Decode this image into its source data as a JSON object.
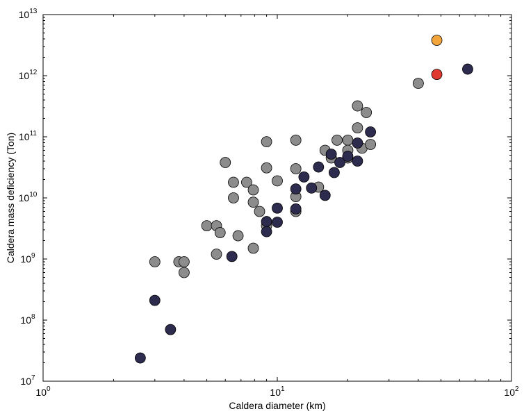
{
  "chart_data": {
    "type": "scatter",
    "title": "",
    "xlabel": "Caldera diameter (km)",
    "ylabel": "Caldera mass deficiency (Ton)",
    "x_scale": "log",
    "y_scale": "log",
    "xlim": [
      1,
      100
    ],
    "ylim": [
      10000000,
      10000000000000
    ],
    "x_ticks": [
      {
        "value": 1,
        "base": "10",
        "exp": "0"
      },
      {
        "value": 10,
        "base": "10",
        "exp": "1"
      },
      {
        "value": 100,
        "base": "10",
        "exp": "2"
      }
    ],
    "y_ticks": [
      {
        "value": 10000000,
        "base": "10",
        "exp": "7"
      },
      {
        "value": 100000000,
        "base": "10",
        "exp": "8"
      },
      {
        "value": 1000000000,
        "base": "10",
        "exp": "9"
      },
      {
        "value": 10000000000,
        "base": "10",
        "exp": "10"
      },
      {
        "value": 100000000000,
        "base": "10",
        "exp": "11"
      },
      {
        "value": 1000000000000,
        "base": "10",
        "exp": "12"
      },
      {
        "value": 10000000000000,
        "base": "10",
        "exp": "13"
      }
    ],
    "grid": false,
    "series": [
      {
        "color": "#8c8c8c",
        "points": [
          [
            3.0,
            900000000.0
          ],
          [
            3.8,
            900000000.0
          ],
          [
            4.0,
            900000000.0
          ],
          [
            4.0,
            600000000.0
          ],
          [
            5.0,
            3500000000.0
          ],
          [
            5.5,
            3500000000.0
          ],
          [
            5.5,
            1200000000.0
          ],
          [
            5.7,
            2700000000.0
          ],
          [
            6.0,
            38000000000.0
          ],
          [
            6.5,
            18000000000.0
          ],
          [
            6.5,
            10000000000.0
          ],
          [
            6.8,
            2400000000.0
          ],
          [
            7.4,
            18000000000.0
          ],
          [
            7.9,
            13500000000.0
          ],
          [
            7.9,
            8500000000.0
          ],
          [
            7.9,
            1500000000.0
          ],
          [
            8.4,
            6000000000.0
          ],
          [
            9.0,
            83000000000.0
          ],
          [
            9.0,
            31000000000.0
          ],
          [
            9.0,
            3500000000.0
          ],
          [
            10.0,
            19000000000.0
          ],
          [
            12.0,
            88000000000.0
          ],
          [
            12.0,
            30000000000.0
          ],
          [
            12.0,
            10500000000.0
          ],
          [
            12.0,
            6000000000.0
          ],
          [
            15.0,
            15000000000.0
          ],
          [
            16.0,
            60000000000.0
          ],
          [
            17.0,
            45000000000.0
          ],
          [
            18.0,
            88000000000.0
          ],
          [
            20.0,
            88000000000.0
          ],
          [
            20.0,
            60000000000.0
          ],
          [
            20.0,
            45000000000.0
          ],
          [
            22.0,
            320000000000.0
          ],
          [
            22.0,
            140000000000.0
          ],
          [
            23.0,
            65000000000.0
          ],
          [
            24.0,
            250000000000.0
          ],
          [
            25.0,
            75000000000.0
          ],
          [
            40.0,
            750000000000.0
          ]
        ]
      },
      {
        "color": "#2d2b4e",
        "points": [
          [
            2.6,
            24000000.0
          ],
          [
            3.0,
            210000000.0
          ],
          [
            3.5,
            70000000.0
          ],
          [
            6.4,
            1100000000.0
          ],
          [
            9.0,
            4100000000.0
          ],
          [
            9.0,
            2800000000.0
          ],
          [
            10.0,
            6800000000.0
          ],
          [
            10.0,
            4000000000.0
          ],
          [
            12.0,
            14000000000.0
          ],
          [
            12.0,
            6600000000.0
          ],
          [
            13.0,
            22000000000.0
          ],
          [
            14.0,
            14500000000.0
          ],
          [
            15.0,
            32000000000.0
          ],
          [
            16.0,
            11000000000.0
          ],
          [
            17.0,
            52000000000.0
          ],
          [
            17.5,
            26000000000.0
          ],
          [
            18.5,
            38000000000.0
          ],
          [
            20.0,
            48000000000.0
          ],
          [
            22.0,
            79000000000.0
          ],
          [
            22.0,
            40000000000.0
          ],
          [
            25.0,
            120000000000.0
          ],
          [
            65.0,
            1280000000000.0
          ]
        ]
      },
      {
        "color": "#f2a53a",
        "points": [
          [
            48.0,
            3800000000000.0
          ]
        ]
      },
      {
        "color": "#e0392f",
        "points": [
          [
            48.0,
            1050000000000.0
          ]
        ]
      }
    ]
  }
}
